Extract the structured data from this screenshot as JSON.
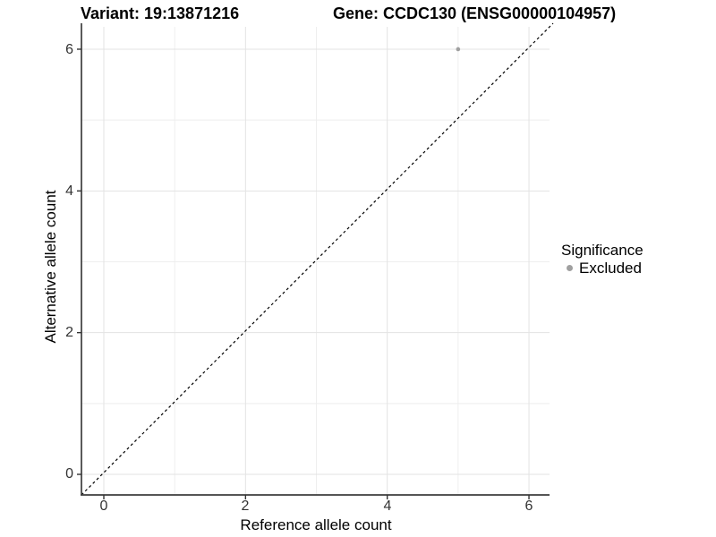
{
  "chart_data": {
    "type": "scatter",
    "title_left": "Variant: 19:13871216",
    "title_right": "Gene: CCDC130 (ENSG00000104957)",
    "xlabel": "Reference allele count",
    "ylabel": "Alternative allele count",
    "xlim": [
      -0.3,
      6.3
    ],
    "ylim": [
      -0.3,
      6.3
    ],
    "x_ticks": [
      0,
      2,
      4,
      6
    ],
    "y_ticks": [
      0,
      2,
      4,
      6
    ],
    "x_tick_labels": [
      "0",
      "2",
      "4",
      "6"
    ],
    "y_tick_labels": [
      "0",
      "2",
      "4",
      "6"
    ],
    "minor_ticks": [
      1,
      3,
      5
    ],
    "grid": true,
    "reference_line": {
      "type": "identity",
      "equation": "y = x",
      "style": "dashed",
      "color": "#000000"
    },
    "series": [
      {
        "name": "Excluded",
        "color": "#a0a0a0",
        "points": [
          {
            "x": 5,
            "y": 6
          }
        ]
      }
    ],
    "legend": {
      "title": "Significance",
      "position": "right",
      "items": [
        {
          "label": "Excluded",
          "color": "#a0a0a0"
        }
      ]
    },
    "colors": {
      "background": "#ffffff",
      "grid_major": "#e3e3e3",
      "grid_minor": "#eeeeee",
      "axis_line": "#3d3d3d",
      "tick_mark": "#333333",
      "tick_text": "#333333",
      "point": "#a0a0a0",
      "reference_line": "#000000"
    }
  }
}
